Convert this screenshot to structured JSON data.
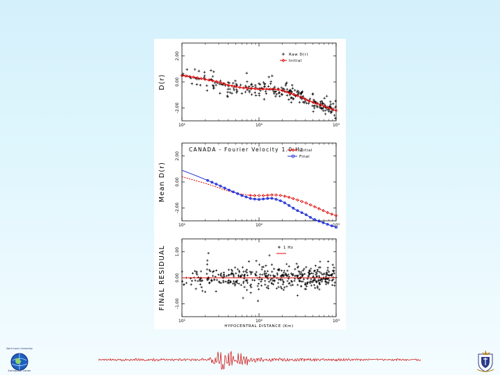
{
  "logos": {
    "left_caption": "Saint Louis University",
    "left_subcaption": "Earthquake Center",
    "left_icon": "globe-emblem-icon",
    "right_icon": "university-crest-icon"
  },
  "colors": {
    "raw": "#000000",
    "initial": "#e00000",
    "final": "#1a2bd8",
    "seismogram": "#cc0000"
  },
  "chart_data": [
    {
      "type": "scatter",
      "id": "top",
      "ylabel": "D(r)",
      "xscale": "log",
      "xlim": [
        10,
        1000
      ],
      "ylim": [
        -3,
        3
      ],
      "yticks": [
        "2.00",
        "0.00",
        "-2.00"
      ],
      "ytick_values": [
        2,
        0,
        -2
      ],
      "xticks": [
        "10¹",
        "10²",
        "10³"
      ],
      "legend": [
        "Raw D(r)",
        "Initial"
      ],
      "legend_position": "top-right",
      "initial_curve": {
        "x": [
          10,
          15,
          20,
          30,
          40,
          60,
          80,
          100,
          130,
          160,
          200,
          260,
          330,
          420,
          520,
          650,
          800,
          1000
        ],
        "y": [
          0.5,
          0.35,
          0.2,
          0.0,
          -0.25,
          -0.45,
          -0.5,
          -0.55,
          -0.55,
          -0.55,
          -0.65,
          -0.9,
          -1.1,
          -1.4,
          -1.6,
          -1.8,
          -2.0,
          -2.2
        ]
      },
      "scatter_count": 240
    },
    {
      "type": "line",
      "id": "middle",
      "title": "CANADA - Fourier Velocity 1.0 Hz",
      "ylabel": "Mean D(r)",
      "xscale": "log",
      "xlim": [
        10,
        1000
      ],
      "ylim": [
        -3,
        3
      ],
      "yticks": [
        "2.00",
        "0.00",
        "-2.00"
      ],
      "ytick_values": [
        2,
        0,
        -2
      ],
      "xticks": [
        "10¹",
        "10²",
        "10³"
      ],
      "legend": [
        "Initial",
        "Final"
      ],
      "legend_position": "top-right",
      "series": [
        {
          "name": "Initial",
          "x": [
            10,
            15,
            20,
            30,
            40,
            60,
            80,
            100,
            120,
            140,
            160,
            200,
            250,
            300,
            400,
            500,
            650,
            800,
            1000
          ],
          "y": [
            0.4,
            0.1,
            -0.1,
            -0.45,
            -0.7,
            -0.95,
            -1.05,
            -1.05,
            -1.05,
            -1.0,
            -1.0,
            -1.05,
            -1.2,
            -1.35,
            -1.6,
            -1.85,
            -2.15,
            -2.4,
            -2.6
          ]
        },
        {
          "name": "Final",
          "x": [
            10,
            15,
            20,
            30,
            40,
            60,
            80,
            100,
            120,
            140,
            160,
            200,
            250,
            300,
            400,
            500,
            650,
            800,
            1000
          ],
          "y": [
            0.9,
            0.5,
            0.2,
            -0.25,
            -0.6,
            -1.05,
            -1.3,
            -1.35,
            -1.3,
            -1.25,
            -1.3,
            -1.5,
            -1.85,
            -2.15,
            -2.5,
            -2.85,
            -3.1,
            -3.3,
            -3.5
          ]
        }
      ]
    },
    {
      "type": "scatter",
      "id": "bottom",
      "ylabel": "FINAL RESIDUAL",
      "xlabel": "HYPOCENTRAL DISTANCE (Km)",
      "xscale": "log",
      "xlim": [
        10,
        1000
      ],
      "ylim": [
        -1.5,
        1.5
      ],
      "yticks": [
        "1.00",
        "0.00",
        "-1.00"
      ],
      "ytick_values": [
        1,
        0,
        -1
      ],
      "xticks": [
        "10¹",
        "10²",
        "10³"
      ],
      "legend": [
        "1 Hz"
      ],
      "legend_position": "top-center",
      "zero_line": 0,
      "scatter_count": 420
    }
  ]
}
